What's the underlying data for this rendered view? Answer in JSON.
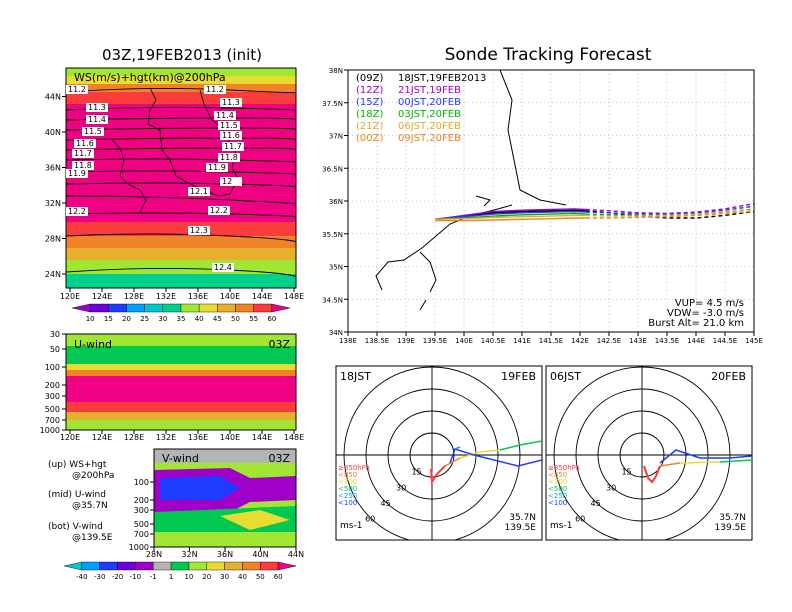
{
  "left_title": "03Z,19FEB2013 (init)",
  "right_title": "Sonde Tracking Forecast",
  "colors": {
    "wind_scale": [
      "#a000c8",
      "#6e00dc",
      "#1e3cff",
      "#00a0ff",
      "#00c8c8",
      "#00d28c",
      "#a0e632",
      "#e6dc32",
      "#e6af2d",
      "#f08228",
      "#fa3c3c",
      "#f00082"
    ],
    "track_09Z": "#000000",
    "track_12Z": "#a000c8",
    "track_15Z": "#1e3cff",
    "track_18Z": "#00b400",
    "track_21Z": "#e6aa28",
    "track_00Z": "#f08228"
  },
  "chart_data": [
    {
      "id": "ws_map",
      "type": "heatmap",
      "title": "WS(m/s)+hgt(km)@200hPa",
      "x_ticks": [
        "120E",
        "124E",
        "128E",
        "132E",
        "136E",
        "140E",
        "144E",
        "148E"
      ],
      "y_ticks": [
        "24N",
        "28N",
        "32N",
        "36N",
        "40N",
        "44N"
      ],
      "contour_labels": [
        "11.2",
        "11.2",
        "11.3",
        "11.3",
        "11.4",
        "11.4",
        "11.5",
        "11.5",
        "11.6",
        "11.6",
        "11.7",
        "11.7",
        "11.8",
        "11.8",
        "11.9",
        "11.9",
        "12",
        "12.1",
        "12.2",
        "12.2",
        "12.3",
        "12.4"
      ],
      "colorbar_labels": [
        "10",
        "15",
        "20",
        "25",
        "30",
        "35",
        "40",
        "45",
        "50",
        "55",
        "60"
      ]
    },
    {
      "id": "u_wind",
      "type": "heatmap",
      "title": "U-wind",
      "time_label": "03Z",
      "x_ticks": [
        "120E",
        "124E",
        "128E",
        "132E",
        "136E",
        "140E",
        "144E",
        "148E"
      ],
      "y_ticks": [
        "30",
        "50",
        "100",
        "200",
        "300",
        "500",
        "700",
        "1000"
      ],
      "legend_lines": [
        "(up) WS+hgt",
        "@200hPa",
        "(mid) U-wind",
        "@35.7N",
        "(bot) V-wind",
        "@139.5E"
      ]
    },
    {
      "id": "v_wind",
      "type": "heatmap",
      "title": "V-wind",
      "time_label": "03Z",
      "x_ticks": [
        "28N",
        "32N",
        "36N",
        "40N",
        "44N"
      ],
      "y_ticks": [
        "100",
        "200",
        "300",
        "500",
        "700",
        "1000"
      ],
      "colorbar_labels": [
        "-40",
        "-30",
        "-20",
        "-10",
        "-1",
        "1",
        "10",
        "20",
        "30",
        "40",
        "50",
        "60"
      ]
    },
    {
      "id": "track_map",
      "type": "line",
      "xlim": [
        138,
        145
      ],
      "ylim": [
        34,
        38
      ],
      "x_ticks": [
        "138E",
        "138.5E",
        "139E",
        "139.5E",
        "140E",
        "140.5E",
        "141E",
        "141.5E",
        "142E",
        "142.5E",
        "143E",
        "143.5E",
        "144E",
        "144.5E",
        "145E"
      ],
      "y_ticks": [
        "34N",
        "34.5N",
        "35N",
        "35.5N",
        "36N",
        "36.5N",
        "37N",
        "37.5N",
        "38N"
      ],
      "legend": [
        {
          "code": "(09Z)",
          "label": "18JST,19FEB2013"
        },
        {
          "code": "(12Z)",
          "label": "21JST,19FEB"
        },
        {
          "code": "(15Z)",
          "label": "00JST,20FEB"
        },
        {
          "code": "(18Z)",
          "label": "03JST,20FEB"
        },
        {
          "code": "(21Z)",
          "label": "06JST,20FEB"
        },
        {
          "code": "(00Z)",
          "label": "09JST,20FEB"
        }
      ],
      "info": [
        "VUP= 4.5 m/s",
        "VDW= -3.0 m/s",
        "Burst Alt= 21.0 km"
      ],
      "series": [
        {
          "key": "track_09Z",
          "x": [
            139.5,
            140.0,
            140.5,
            141.0,
            141.5,
            141.9,
            142.1,
            142.5,
            143.0,
            143.5,
            144.0,
            144.5,
            145.0
          ],
          "y": [
            35.72,
            35.77,
            35.82,
            35.84,
            35.85,
            35.86,
            35.85,
            35.82,
            35.77,
            35.74,
            35.74,
            35.78,
            35.84
          ]
        },
        {
          "key": "track_12Z",
          "x": [
            139.5,
            140.0,
            140.5,
            141.0,
            141.5,
            141.9,
            142.1,
            142.5,
            143.0,
            143.5,
            144.0,
            144.5,
            145.0
          ],
          "y": [
            35.72,
            35.78,
            35.84,
            35.86,
            35.87,
            35.88,
            35.87,
            35.85,
            35.82,
            35.81,
            35.83,
            35.88,
            35.96
          ]
        },
        {
          "key": "track_15Z",
          "x": [
            139.5,
            140.0,
            140.5,
            141.0,
            141.5,
            141.9,
            142.1,
            142.5,
            143.0,
            143.5,
            144.0,
            144.5,
            145.0
          ],
          "y": [
            35.72,
            35.76,
            35.8,
            35.82,
            35.83,
            35.84,
            35.83,
            35.82,
            35.8,
            35.8,
            35.82,
            35.86,
            35.92
          ]
        },
        {
          "key": "track_18Z",
          "x": [
            139.5,
            140.0,
            140.5,
            141.0,
            141.5,
            141.9,
            142.1,
            142.5,
            143.0,
            143.5,
            144.0,
            144.5,
            145.0
          ],
          "y": [
            35.72,
            35.74,
            35.77,
            35.79,
            35.8,
            35.81,
            35.8,
            35.79,
            35.78,
            35.78,
            35.8,
            35.83,
            35.88
          ]
        },
        {
          "key": "track_21Z",
          "x": [
            139.5,
            140.0,
            140.5,
            141.0,
            141.5,
            141.9,
            142.1,
            142.5,
            143.0,
            143.5,
            144.0,
            144.5,
            145.0
          ],
          "y": [
            35.72,
            35.73,
            35.75,
            35.76,
            35.77,
            35.78,
            35.78,
            35.77,
            35.77,
            35.78,
            35.8,
            35.83,
            35.87
          ]
        },
        {
          "key": "track_00Z",
          "x": [
            139.5,
            140.0,
            140.5,
            141.0,
            141.5,
            141.9,
            142.1,
            142.5,
            143.0,
            143.5,
            144.0,
            144.5,
            145.0
          ],
          "y": [
            35.7,
            35.7,
            35.71,
            35.72,
            35.73,
            35.74,
            35.74,
            35.74,
            35.75,
            35.76,
            35.78,
            35.81,
            35.84
          ]
        }
      ]
    },
    {
      "id": "hodo_18JST",
      "type": "line",
      "time_label": "18JST",
      "date_label": "19FEB",
      "speed_rings": [
        "15",
        "30",
        "45",
        "60"
      ],
      "level_legend": [
        "≥850hPa",
        "<850",
        "<700",
        "<500",
        "<250",
        "<100"
      ],
      "location": [
        "35.7N",
        "139.5E"
      ],
      "unit": "ms-1"
    },
    {
      "id": "hodo_06JST",
      "type": "line",
      "time_label": "06JST",
      "date_label": "20FEB",
      "speed_rings": [
        "15",
        "30",
        "45",
        "60"
      ],
      "level_legend": [
        "≥850hPa",
        "<850",
        "<700",
        "<500",
        "<250",
        "<100"
      ],
      "location": [
        "35.7N",
        "139.5E"
      ],
      "unit": "ms-1"
    }
  ]
}
